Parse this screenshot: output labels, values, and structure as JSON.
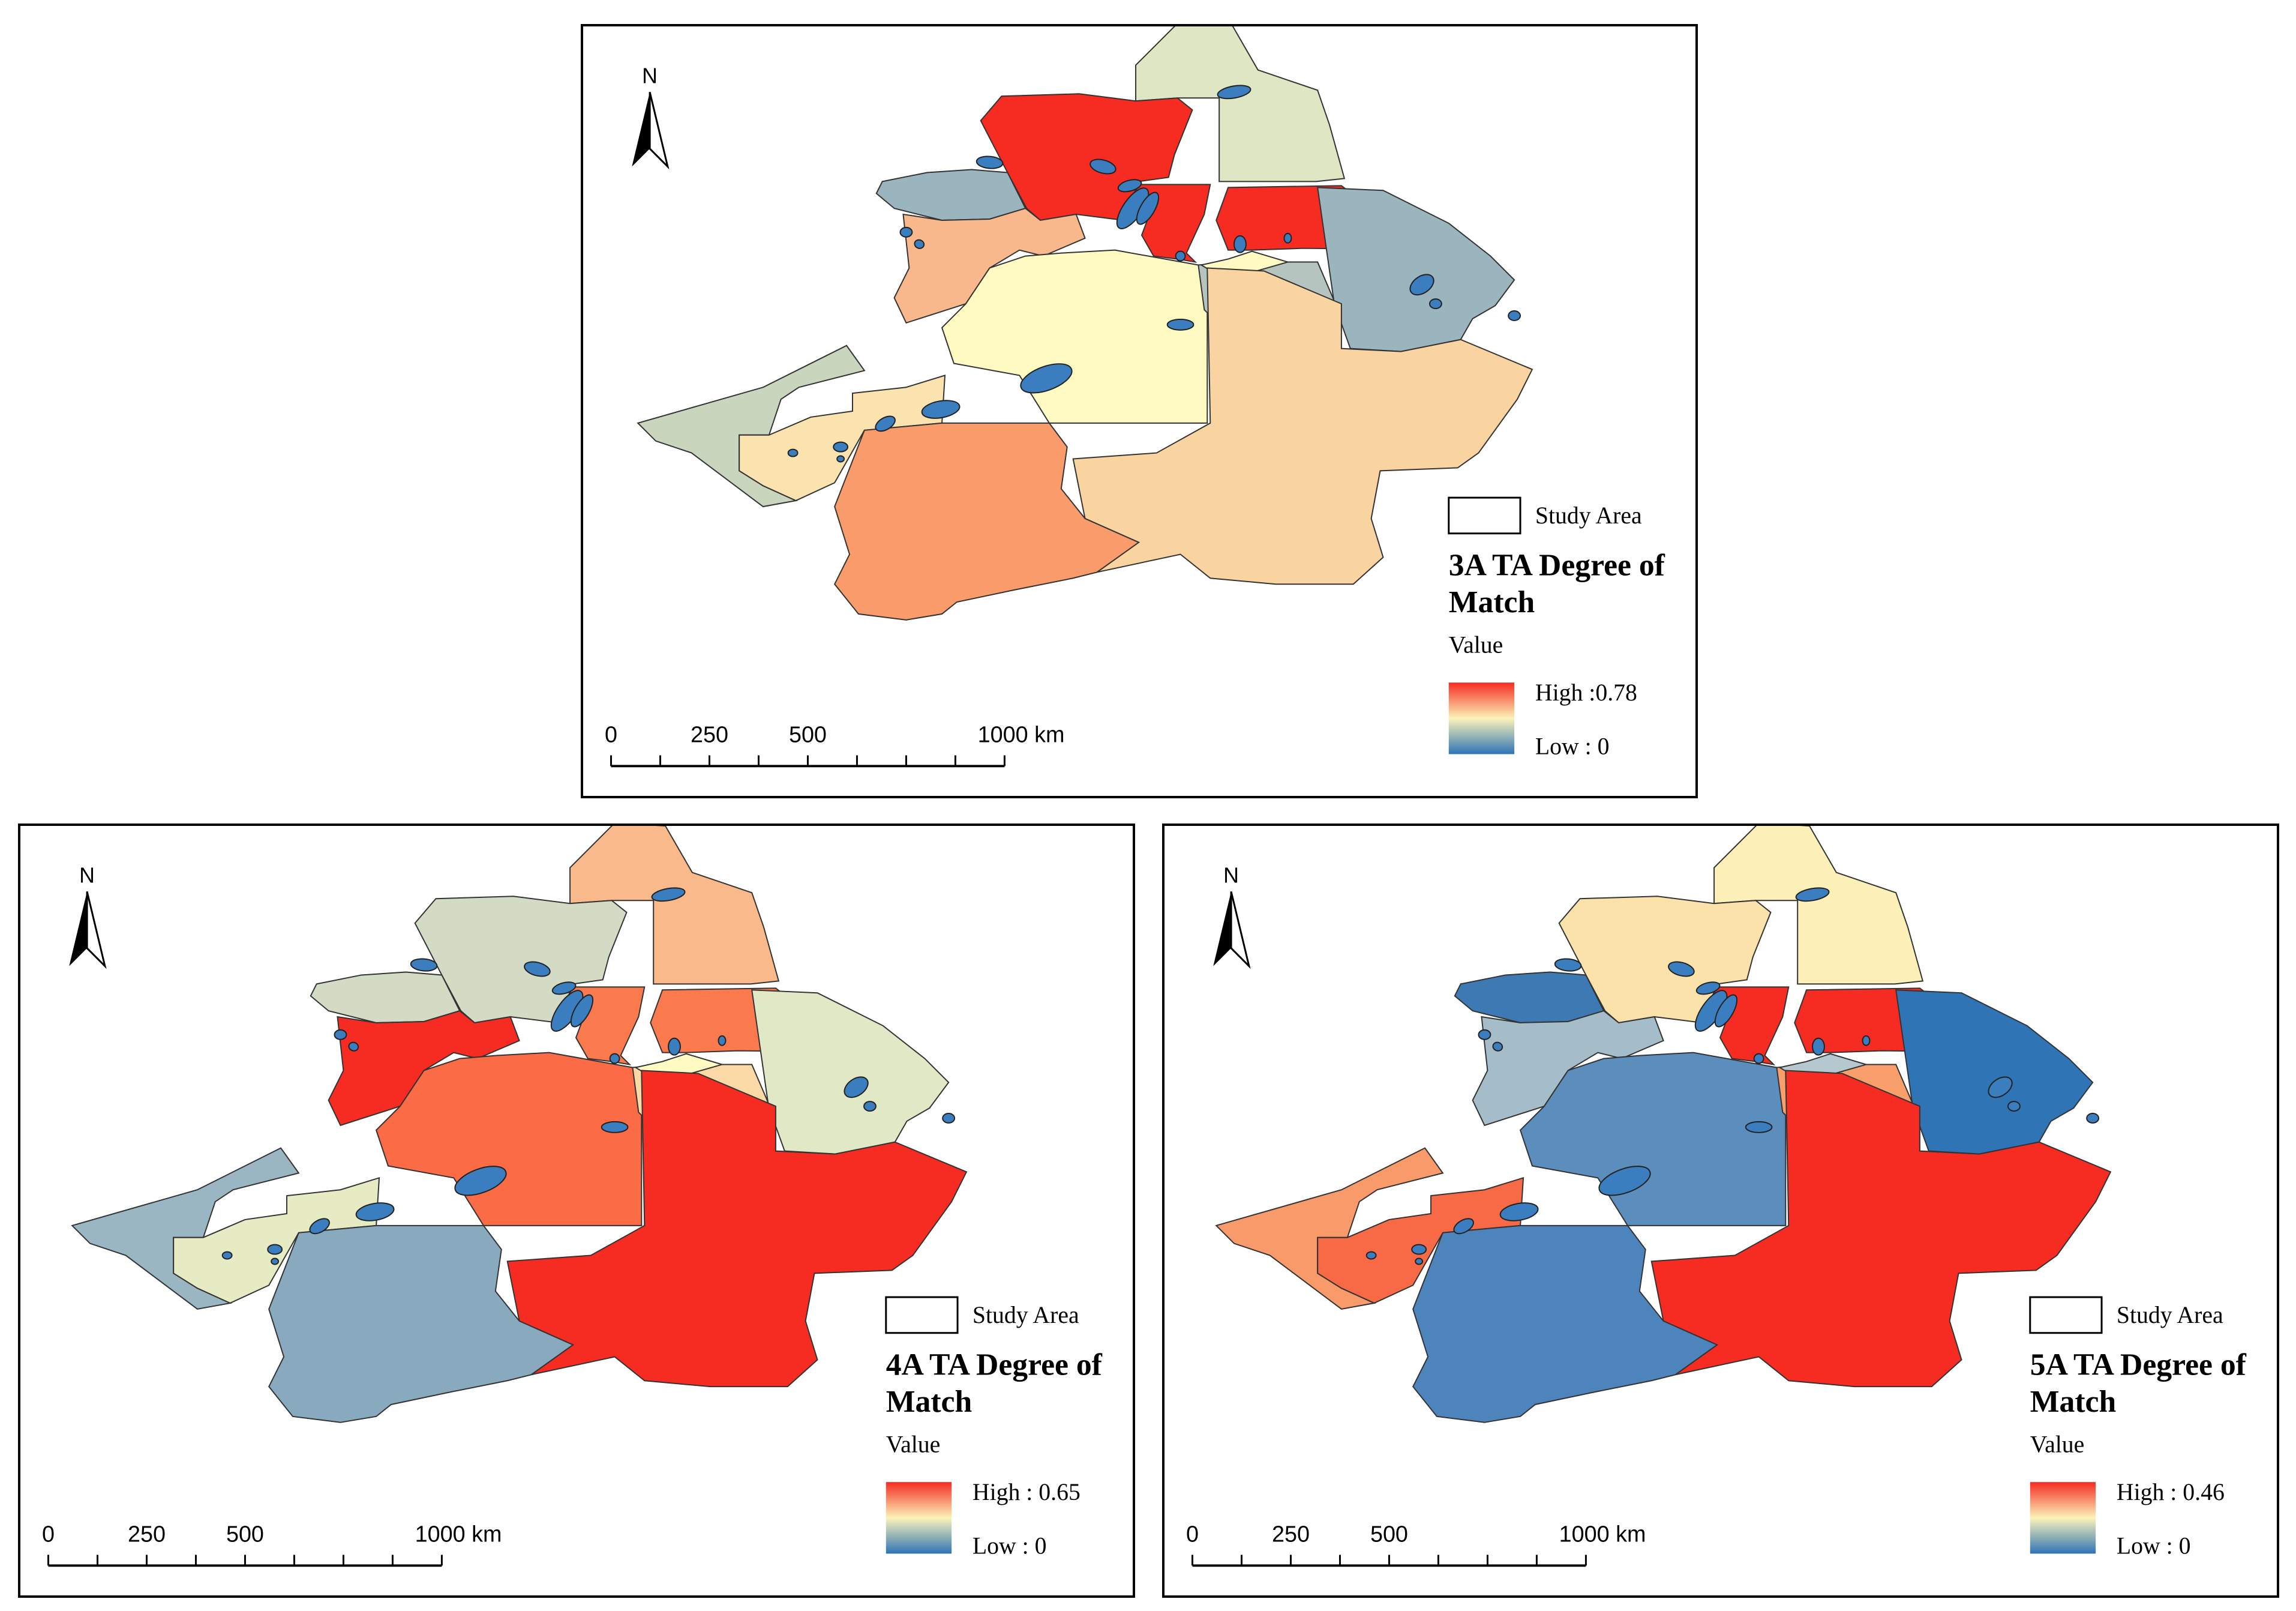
{
  "maps": [
    {
      "id": "3a",
      "north": "N",
      "scale_labels": [
        "0",
        "250",
        "500",
        "1000 km"
      ],
      "legend": {
        "study_area": "Study Area",
        "title_line1": "3A TA Degree of",
        "title_line2": "Match",
        "value_label": "Value",
        "high": "High :0.78",
        "low": "Low : 0"
      },
      "region_colors": {
        "R1": "#dfe6c4",
        "R2": "#f62b22",
        "R3": "#f62b22",
        "R4": "#f62b22",
        "R5": "#9ab5bd",
        "R6": "#f8b88b",
        "R7": "#fffac2",
        "R8": "#b5c4bf",
        "R9": "#9ab5bd",
        "R10": "#fffac2",
        "R11": "#f9d4a0",
        "R12": "#c9d5bd",
        "R13": "#fbe3b0",
        "R14": "#f99b6a"
      }
    },
    {
      "id": "4a",
      "north": "N",
      "scale_labels": [
        "0",
        "250",
        "500",
        "1000 km"
      ],
      "legend": {
        "study_area": "Study Area",
        "title_line1": "4A TA Degree of",
        "title_line2": "Match",
        "value_label": "Value",
        "high": "High : 0.65",
        "low": "Low : 0"
      },
      "region_colors": {
        "R1": "#f9b98a",
        "R2": "#d4dbc5",
        "R3": "#fa7a4e",
        "R4": "#fa7a4e",
        "R5": "#d4dbc5",
        "R6": "#f62b22",
        "R7": "#fa6b46",
        "R8": "#fbd9a6",
        "R9": "#e1e8c6",
        "R10": "#fffac2",
        "R11": "#f62b22",
        "R12": "#9bb6c3",
        "R13": "#e6ebc4",
        "R14": "#88a9be"
      }
    },
    {
      "id": "5a",
      "north": "N",
      "scale_labels": [
        "0",
        "250",
        "500",
        "1000 km"
      ],
      "legend": {
        "study_area": "Study Area",
        "title_line1": "5A TA Degree of",
        "title_line2": "Match",
        "value_label": "Value",
        "high": "High : 0.46",
        "low": "Low : 0"
      },
      "region_colors": {
        "R1": "#fcefb8",
        "R2": "#fbe1aa",
        "R3": "#f62b22",
        "R4": "#f62b22",
        "R5": "#3d7ab3",
        "R6": "#a5bcc9",
        "R7": "#5b8dbd",
        "R8": "#f99f6c",
        "R9": "#2f74b5",
        "R10": "#b6c8cf",
        "R11": "#f62b22",
        "R12": "#f89a6a",
        "R13": "#f86a45",
        "R14": "#4d84bb"
      }
    }
  ],
  "lake_color": "#3b7ebf",
  "gradient": {
    "high": "#f62b22",
    "mid": "#fbf3b8",
    "low": "#2f74b5"
  }
}
